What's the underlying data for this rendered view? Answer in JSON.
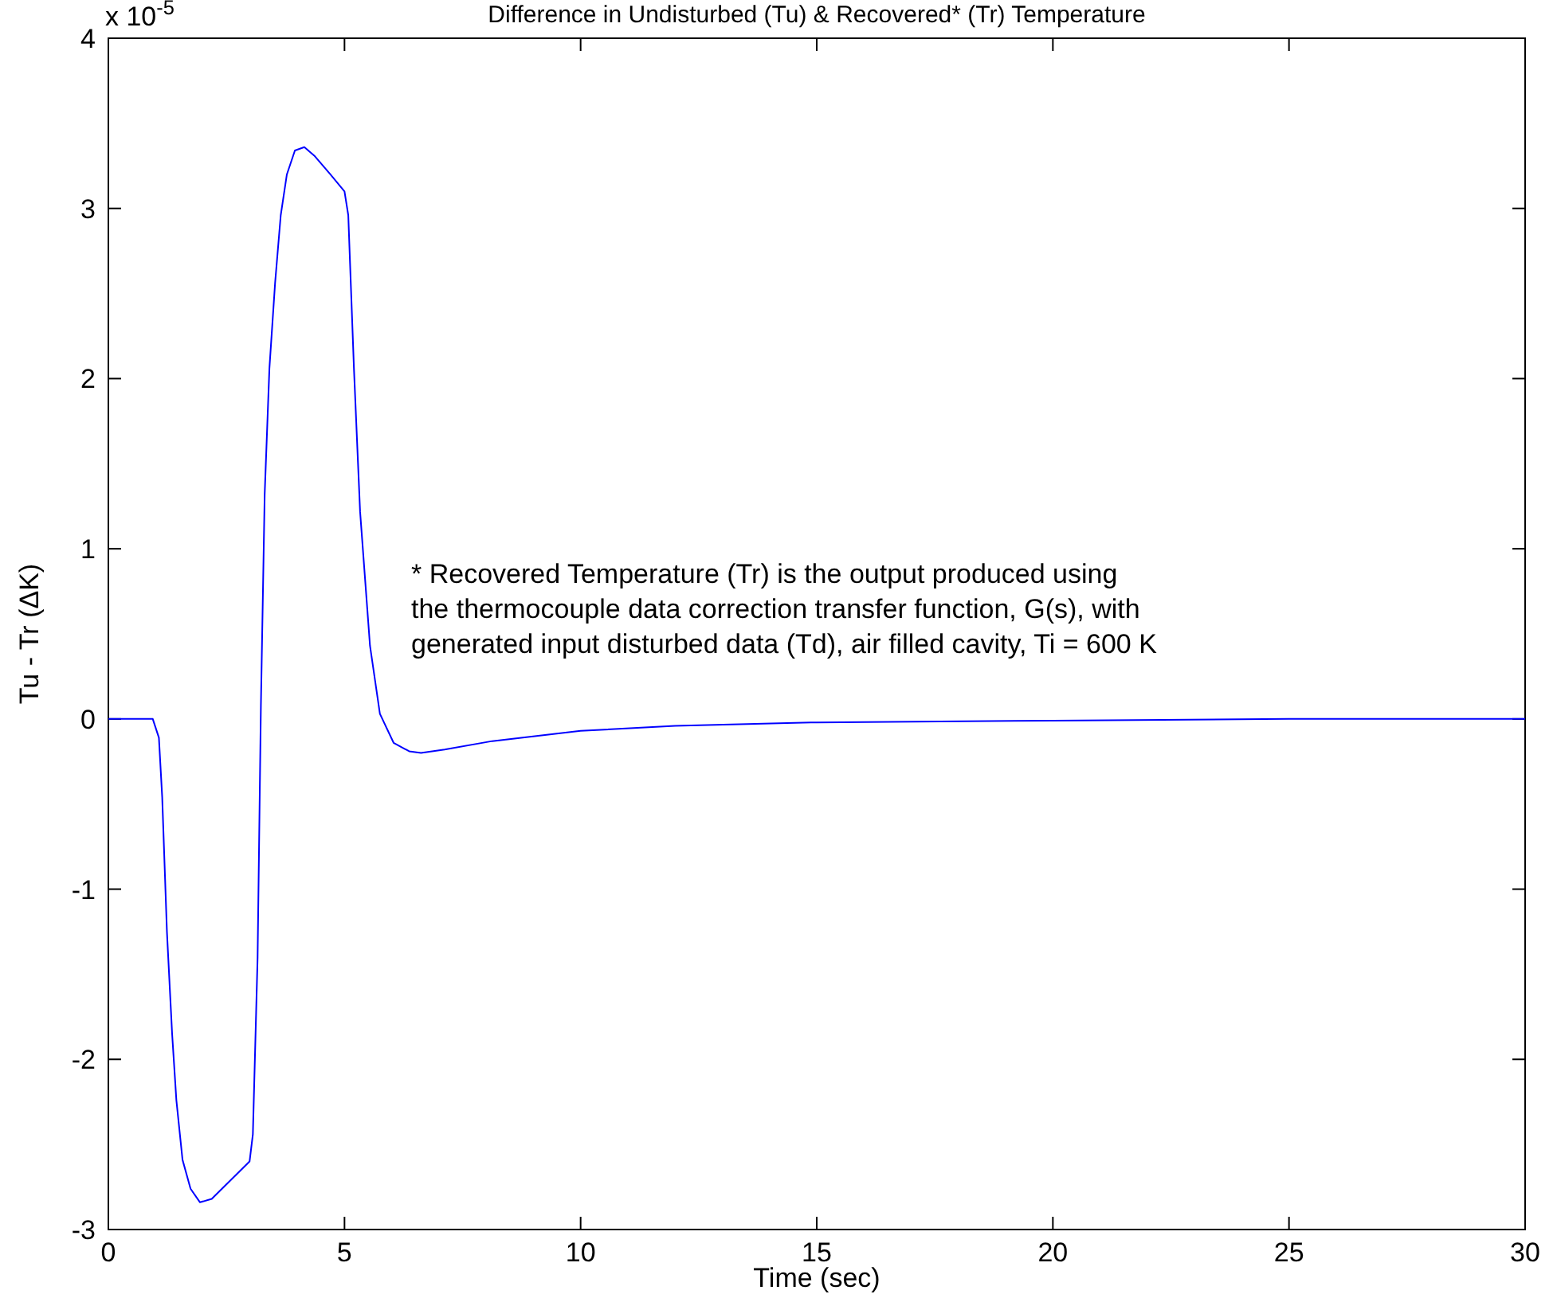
{
  "chart_data": {
    "type": "line",
    "title": "Difference in Undisturbed (Tu) & Recovered* (Tr) Temperature",
    "xlabel": "Time (sec)",
    "ylabel": "Tu - Tr (ΔK)",
    "annotations": [
      "x 10$^{-5}$",
      "* Recovered Temperature (Tr) is the output produced using\nthe thermocouple data correction transfer function, G(s), with\ngenerated input disturbed data (Td), air filled cavity, Ti = 600 K"
    ],
    "xlim": [
      0,
      30
    ],
    "xticks": [
      0,
      5,
      10,
      15,
      20,
      25,
      30
    ],
    "ylim": [
      -3,
      4
    ],
    "yticks": [
      -3,
      -2,
      -1,
      0,
      1,
      2,
      3,
      4
    ],
    "series": [
      {
        "color": "#0000ff",
        "x": [
          0,
          0.94,
          1.07,
          1.14,
          1.24,
          1.35,
          1.44,
          1.57,
          1.74,
          1.94,
          2.19,
          2.99,
          3.06,
          3.16,
          3.23,
          3.31,
          3.41,
          3.53,
          3.65,
          3.78,
          3.95,
          4.15,
          4.36,
          4.7,
          5.0,
          5.08,
          5.2,
          5.33,
          5.54,
          5.75,
          6.04,
          6.37,
          6.62,
          7.12,
          8.13,
          10,
          12,
          15,
          20,
          25,
          30
        ],
        "values": [
          0,
          0,
          -0.11,
          -0.46,
          -1.25,
          -1.85,
          -2.24,
          -2.59,
          -2.76,
          -2.84,
          -2.82,
          -2.6,
          -2.44,
          -1.4,
          0.08,
          1.32,
          2.06,
          2.56,
          2.96,
          3.2,
          3.34,
          3.36,
          3.31,
          3.2,
          3.1,
          2.96,
          2.06,
          1.22,
          0.43,
          0.03,
          -0.14,
          -0.19,
          -0.2,
          -0.18,
          -0.13,
          -0.07,
          -0.04,
          -0.02,
          -0.01,
          0,
          0
        ]
      }
    ]
  }
}
